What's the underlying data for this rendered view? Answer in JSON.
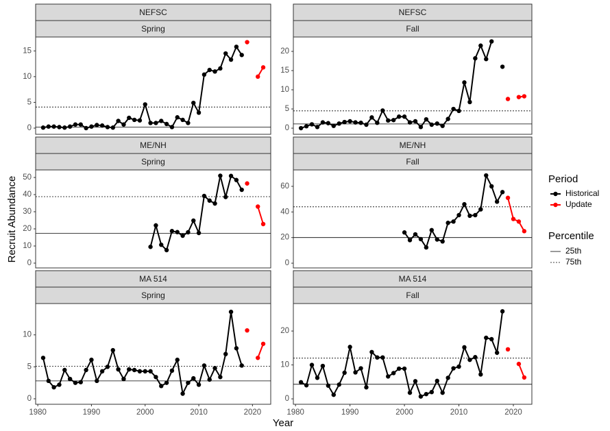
{
  "x_label": "Year",
  "y_label": "Recruit Abundance",
  "legend": {
    "title": "Period"
  },
  "percentile_legend": {
    "title": "Percentile"
  },
  "chart_data": [
    {
      "type": "line",
      "strips": [
        "NEFSC",
        "Spring"
      ],
      "xlim": [
        1979.6,
        2023.4
      ],
      "ylim": [
        -1.2,
        17.7
      ],
      "yticks": [
        0,
        5,
        10,
        15
      ],
      "series": [
        {
          "name": "Historical",
          "color": "#000000",
          "x": [
            1981,
            1982,
            1983,
            1984,
            1985,
            1986,
            1987,
            1988,
            1989,
            1990,
            1991,
            1992,
            1993,
            1994,
            1995,
            1996,
            1997,
            1998,
            1999,
            2000,
            2001,
            2002,
            2003,
            2004,
            2005,
            2006,
            2007,
            2008,
            2009,
            2010,
            2011,
            2012,
            2013,
            2014,
            2015,
            2016,
            2017,
            2018
          ],
          "values": [
            0.1,
            0.3,
            0.3,
            0.2,
            0.1,
            0.3,
            0.7,
            0.7,
            0.0,
            0.3,
            0.6,
            0.5,
            0.2,
            0.1,
            1.4,
            0.7,
            2.0,
            1.6,
            1.5,
            4.6,
            1.0,
            1.0,
            1.4,
            0.8,
            0.2,
            2.1,
            1.6,
            1.0,
            4.9,
            3.0,
            10.4,
            11.3,
            11.0,
            11.6,
            14.5,
            13.3,
            15.8,
            14.2
          ]
        },
        {
          "name": "Update",
          "color": "#ff0000",
          "x": [
            2019,
            2020,
            2021,
            2022
          ],
          "values": [
            16.7,
            null,
            10.0,
            11.8
          ]
        }
      ],
      "reference_lines": [
        {
          "name": "25th",
          "value": 0.2,
          "style": "solid"
        },
        {
          "name": "75th",
          "value": 4.1,
          "style": "dotted"
        }
      ]
    },
    {
      "type": "line",
      "strips": [
        "NEFSC",
        "Fall"
      ],
      "xlim": [
        1979.6,
        2023.4
      ],
      "ylim": [
        -1.6,
        23.75
      ],
      "yticks": [
        0,
        5,
        10,
        15,
        20
      ],
      "series": [
        {
          "name": "Historical",
          "color": "#000000",
          "x": [
            1981,
            1982,
            1983,
            1984,
            1985,
            1986,
            1987,
            1988,
            1989,
            1990,
            1991,
            1992,
            1993,
            1994,
            1995,
            1996,
            1997,
            1998,
            1999,
            2000,
            2001,
            2002,
            2003,
            2004,
            2005,
            2006,
            2007,
            2008,
            2009,
            2010,
            2011,
            2012,
            2013,
            2014,
            2015,
            2016,
            2017,
            2018
          ],
          "values": [
            0.0,
            0.5,
            1.0,
            0.3,
            1.5,
            1.3,
            0.6,
            1.2,
            1.6,
            1.8,
            1.5,
            1.4,
            0.9,
            2.8,
            1.4,
            4.6,
            2.0,
            2.1,
            3.0,
            3.0,
            1.5,
            1.8,
            0.3,
            2.3,
            0.9,
            1.2,
            0.6,
            2.4,
            5.0,
            4.5,
            11.9,
            6.8,
            18.2,
            21.5,
            18.0,
            22.6,
            null,
            16.0
          ]
        },
        {
          "name": "Update",
          "color": "#ff0000",
          "x": [
            2019,
            2020,
            2021,
            2022
          ],
          "values": [
            7.6,
            null,
            8.1,
            8.3
          ]
        }
      ],
      "reference_lines": [
        {
          "name": "25th",
          "value": 1.1,
          "style": "solid"
        },
        {
          "name": "75th",
          "value": 4.5,
          "style": "dotted"
        }
      ]
    },
    {
      "type": "line",
      "strips": [
        "ME/NH",
        "Spring"
      ],
      "xlim": [
        1979.6,
        2023.4
      ],
      "ylim": [
        -2.8,
        54.4
      ],
      "yticks": [
        0,
        10,
        20,
        30,
        40,
        50
      ],
      "series": [
        {
          "name": "Historical",
          "color": "#000000",
          "x": [
            2001,
            2002,
            2003,
            2004,
            2005,
            2006,
            2007,
            2008,
            2009,
            2010,
            2011,
            2012,
            2013,
            2014,
            2015,
            2016,
            2017,
            2018
          ],
          "values": [
            9.5,
            22.0,
            10.7,
            7.6,
            18.7,
            18.1,
            16.0,
            18.0,
            24.8,
            17.6,
            39.2,
            36.5,
            34.8,
            51.0,
            38.6,
            50.9,
            48.5,
            42.8
          ]
        },
        {
          "name": "Update",
          "color": "#ff0000",
          "x": [
            2019,
            2020,
            2021,
            2022
          ],
          "values": [
            46.5,
            null,
            33.0,
            22.8
          ]
        }
      ],
      "reference_lines": [
        {
          "name": "25th",
          "value": 17.4,
          "style": "solid"
        },
        {
          "name": "75th",
          "value": 38.8,
          "style": "dotted"
        }
      ]
    },
    {
      "type": "line",
      "strips": [
        "ME/NH",
        "Fall"
      ],
      "xlim": [
        1979.6,
        2023.4
      ],
      "ylim": [
        -3.7,
        72.8
      ],
      "yticks": [
        0,
        20,
        40,
        60
      ],
      "series": [
        {
          "name": "Historical",
          "color": "#000000",
          "x": [
            2000,
            2001,
            2002,
            2003,
            2004,
            2005,
            2006,
            2007,
            2008,
            2009,
            2010,
            2011,
            2012,
            2013,
            2014,
            2015,
            2016,
            2017,
            2018
          ],
          "values": [
            24.0,
            18.0,
            22.5,
            18.8,
            12.3,
            25.8,
            18.5,
            17.0,
            31.5,
            32.5,
            37.5,
            46.0,
            37.0,
            37.5,
            42.0,
            68.5,
            60.0,
            48.0,
            55.5
          ]
        },
        {
          "name": "Update",
          "color": "#ff0000",
          "x": [
            2019,
            2020,
            2021,
            2022
          ],
          "values": [
            51.0,
            34.5,
            32.5,
            25.0
          ]
        }
      ],
      "reference_lines": [
        {
          "name": "25th",
          "value": 20,
          "style": "solid"
        },
        {
          "name": "75th",
          "value": 44,
          "style": "dotted"
        }
      ]
    },
    {
      "type": "line",
      "strips": [
        "MA 514",
        "Spring"
      ],
      "xlim": [
        1979.6,
        2023.4
      ],
      "xticks": [
        1980,
        1990,
        2000,
        2010,
        2020
      ],
      "ylim": [
        -0.86,
        14.9
      ],
      "yticks": [
        0,
        5,
        10
      ],
      "series": [
        {
          "name": "Historical",
          "color": "#000000",
          "x": [
            1981,
            1982,
            1983,
            1984,
            1985,
            1986,
            1987,
            1988,
            1989,
            1990,
            1991,
            1992,
            1993,
            1994,
            1995,
            1996,
            1997,
            1998,
            1999,
            2000,
            2001,
            2002,
            2003,
            2004,
            2005,
            2006,
            2007,
            2008,
            2009,
            2010,
            2011,
            2012,
            2013,
            2014,
            2015,
            2016,
            2017,
            2018
          ],
          "values": [
            6.4,
            2.8,
            1.8,
            2.2,
            4.5,
            3.1,
            2.5,
            2.6,
            4.5,
            6.1,
            2.8,
            4.3,
            5.0,
            7.6,
            4.6,
            3.1,
            4.6,
            4.5,
            4.3,
            4.3,
            4.3,
            3.4,
            2.0,
            2.5,
            4.4,
            6.1,
            0.8,
            2.5,
            3.2,
            2.2,
            5.2,
            3.0,
            4.8,
            3.4,
            7.0,
            13.6,
            7.9,
            5.2
          ]
        },
        {
          "name": "Update",
          "color": "#ff0000",
          "x": [
            2019,
            2020,
            2021,
            2022
          ],
          "values": [
            10.7,
            null,
            6.4,
            8.6
          ]
        }
      ],
      "reference_lines": [
        {
          "name": "25th",
          "value": 2.8,
          "style": "solid"
        },
        {
          "name": "75th",
          "value": 5.1,
          "style": "dotted"
        }
      ]
    },
    {
      "type": "line",
      "strips": [
        "MA 514",
        "Fall"
      ],
      "xlim": [
        1979.6,
        2023.4
      ],
      "xticks": [
        1980,
        1990,
        2000,
        2010,
        2020
      ],
      "ylim": [
        -1.6,
        28.1
      ],
      "yticks": [
        0,
        10,
        20
      ],
      "series": [
        {
          "name": "Historical",
          "color": "#000000",
          "x": [
            1981,
            1982,
            1983,
            1984,
            1985,
            1986,
            1987,
            1988,
            1989,
            1990,
            1991,
            1992,
            1993,
            1994,
            1995,
            1996,
            1997,
            1998,
            1999,
            2000,
            2001,
            2002,
            2003,
            2004,
            2005,
            2006,
            2007,
            2008,
            2009,
            2010,
            2011,
            2012,
            2013,
            2014,
            2015,
            2016,
            2017,
            2018
          ],
          "values": [
            4.9,
            4.0,
            10.0,
            6.2,
            9.7,
            3.9,
            1.2,
            4.2,
            7.7,
            15.3,
            7.8,
            9.0,
            3.4,
            13.8,
            12.2,
            12.2,
            6.6,
            7.6,
            8.9,
            8.9,
            1.8,
            5.2,
            0.7,
            1.4,
            2.0,
            5.3,
            1.8,
            6.2,
            9.0,
            9.5,
            15.2,
            11.5,
            12.3,
            7.2,
            18.0,
            17.6,
            13.6,
            25.8
          ]
        },
        {
          "name": "Update",
          "color": "#ff0000",
          "x": [
            2019,
            2020,
            2021,
            2022
          ],
          "values": [
            14.6,
            null,
            10.3,
            6.3
          ]
        }
      ],
      "reference_lines": [
        {
          "name": "25th",
          "value": 4.3,
          "style": "solid"
        },
        {
          "name": "75th",
          "value": 12.0,
          "style": "dotted"
        }
      ]
    }
  ]
}
